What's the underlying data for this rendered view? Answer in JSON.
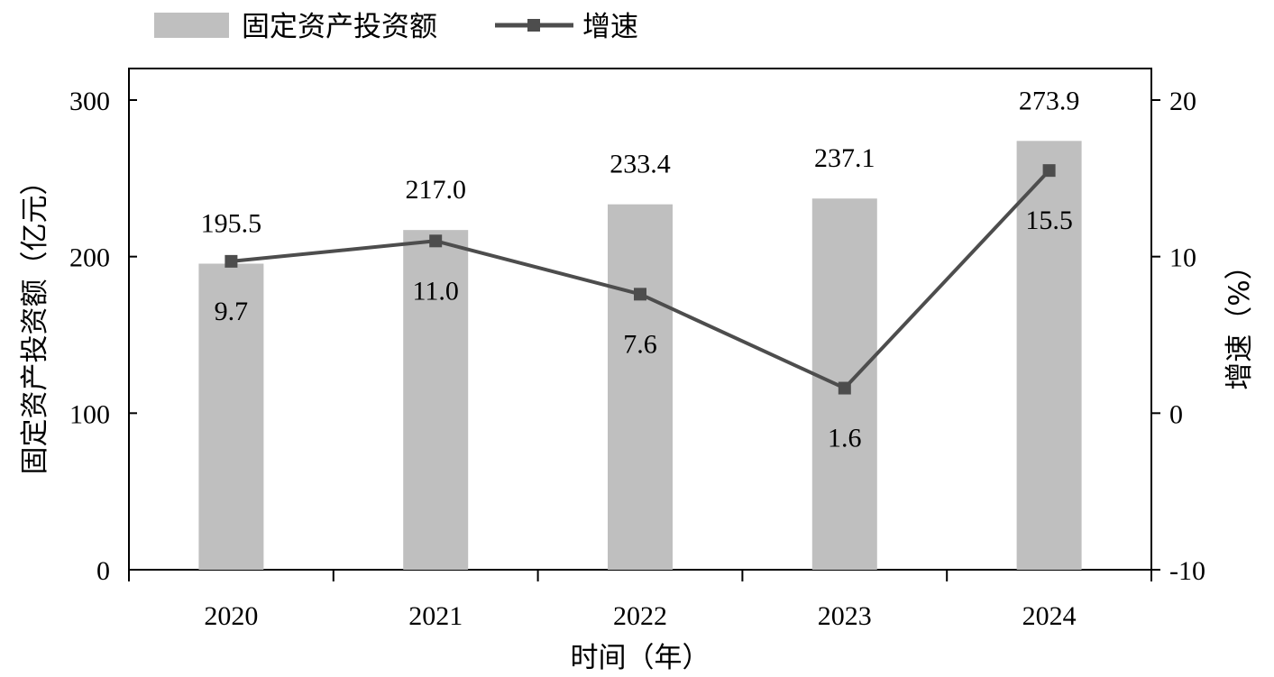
{
  "chart_data": {
    "type": "bar",
    "categories": [
      "2020",
      "2021",
      "2022",
      "2023",
      "2024"
    ],
    "series": [
      {
        "name": "固定资产投资额",
        "type": "bar",
        "axis": "left",
        "values": [
          195.5,
          217.0,
          233.4,
          237.1,
          273.9
        ],
        "labels": [
          "195.5",
          "217.0",
          "233.4",
          "237.1",
          "273.9"
        ]
      },
      {
        "name": "增速",
        "type": "line",
        "axis": "right",
        "values": [
          9.7,
          11.0,
          7.6,
          1.6,
          15.5
        ],
        "labels": [
          "9.7",
          "11.0",
          "7.6",
          "1.6",
          "15.5"
        ]
      }
    ],
    "xlabel": "时间（年）",
    "ylabel": "固定资产投资额（亿元）",
    "y2label": "增速（%）",
    "ylim": [
      0,
      300
    ],
    "y2lim": [
      -10,
      20
    ],
    "yticks": [
      "0",
      "100",
      "200",
      "300"
    ],
    "y2ticks": [
      "-10",
      "0",
      "10",
      "20"
    ],
    "grid": false,
    "legend_position": "top-left",
    "colors": {
      "bar": "#bfbfbf",
      "line": "#4d4d4d",
      "axis": "#000000"
    }
  }
}
